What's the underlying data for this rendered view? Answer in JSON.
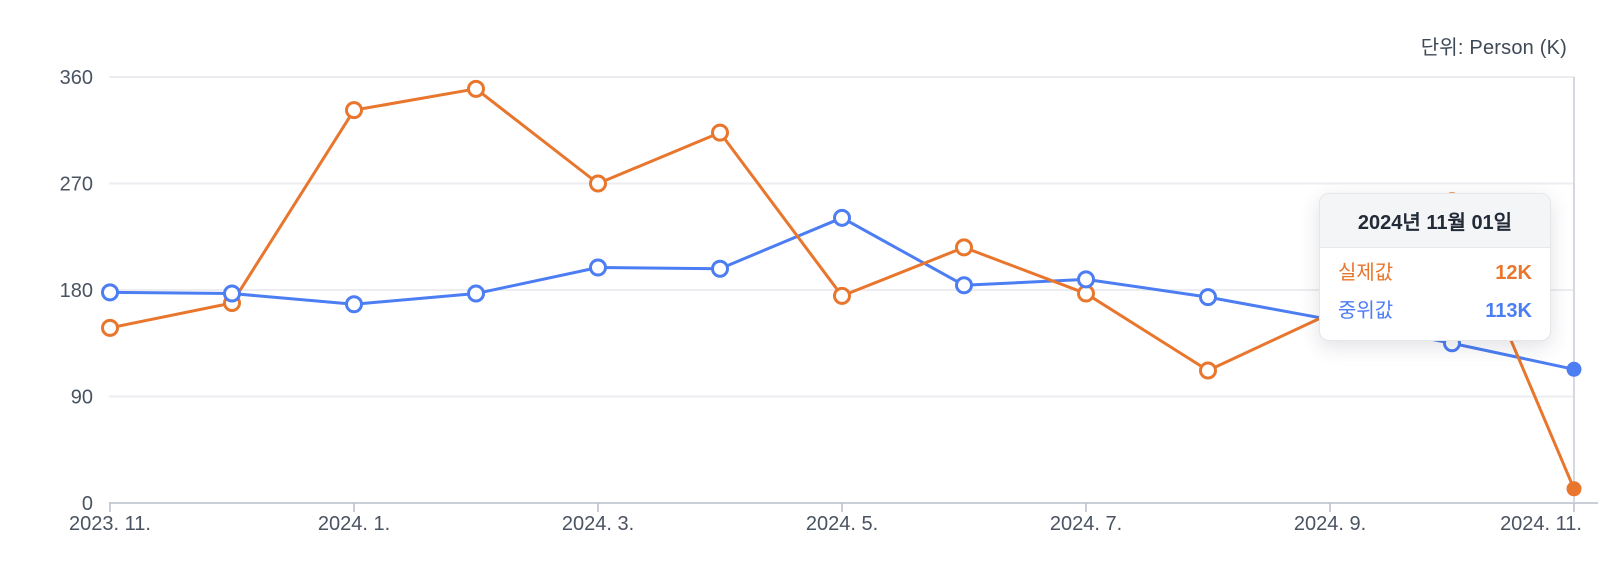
{
  "unit_label": "단위: Person (K)",
  "colors": {
    "actual": "#e8762d",
    "median": "#4c7df2",
    "grid": "#ededf1",
    "axis": "#b9bec9",
    "tick_label": "#4a5361",
    "crosshair": "#d5d8de"
  },
  "tooltip": {
    "title": "2024년 11월 01일",
    "rows": [
      {
        "label": "실제값",
        "value": "12K",
        "color": "#e8762d"
      },
      {
        "label": "중위값",
        "value": "113K",
        "color": "#4c7df2"
      }
    ]
  },
  "chart_data": {
    "type": "line",
    "title": "",
    "xlabel": "",
    "ylabel": "Person (K)",
    "x": [
      "2023.11",
      "2023.12",
      "2024.01",
      "2024.02",
      "2024.03",
      "2024.04",
      "2024.05",
      "2024.06",
      "2024.07",
      "2024.08",
      "2024.09",
      "2024.10",
      "2024.11"
    ],
    "x_tick_indices": [
      0,
      2,
      4,
      6,
      8,
      10,
      12
    ],
    "x_tick_labels": [
      "2023. 11.",
      "2024. 1.",
      "2024. 3.",
      "2024. 5.",
      "2024. 7.",
      "2024. 9.",
      "2024. 11."
    ],
    "y_ticks": [
      0,
      90,
      180,
      270,
      360
    ],
    "ylim": [
      0,
      360
    ],
    "grid": "horizontal",
    "legend_position": "none",
    "series": [
      {
        "name": "실제값",
        "key": "actual",
        "color": "#e8762d",
        "values": [
          148,
          169,
          332,
          350,
          270,
          313,
          175,
          216,
          177,
          112,
          160,
          255,
          12
        ]
      },
      {
        "name": "중위값",
        "key": "median",
        "color": "#4c7df2",
        "values": [
          178,
          177,
          168,
          177,
          199,
          198,
          241,
          184,
          189,
          174,
          155,
          135,
          113
        ]
      }
    ],
    "hover_index": 12,
    "hover_x_label": "2024.11",
    "hover_values": {
      "실제값": "12K",
      "중위값": "113K"
    }
  }
}
